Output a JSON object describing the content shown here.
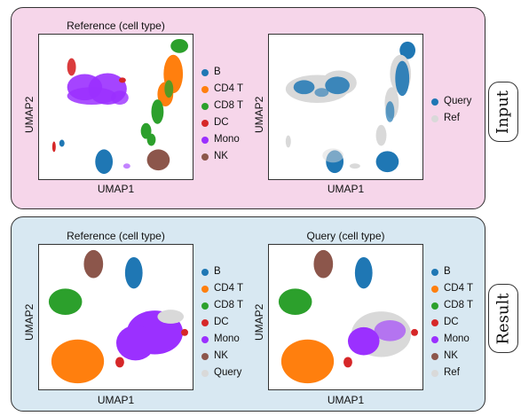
{
  "panels": {
    "input": {
      "tag": "Input",
      "plots": [
        {
          "title": "Reference (cell type)",
          "xlabel": "UMAP1",
          "ylabel": "UMAP2",
          "legend": [
            "B",
            "CD4 T",
            "CD8 T",
            "DC",
            "Mono",
            "NK"
          ]
        },
        {
          "title": "",
          "xlabel": "UMAP1",
          "ylabel": "UMAP2",
          "legend": [
            "Query",
            "Ref"
          ]
        }
      ]
    },
    "result": {
      "tag": "Result",
      "plots": [
        {
          "title": "Reference (cell type)",
          "xlabel": "UMAP1",
          "ylabel": "UMAP2",
          "legend": [
            "B",
            "CD4 T",
            "CD8 T",
            "DC",
            "Mono",
            "NK",
            "Query"
          ]
        },
        {
          "title": "Query (cell type)",
          "xlabel": "UMAP1",
          "ylabel": "UMAP2",
          "legend": [
            "B",
            "CD4 T",
            "CD8 T",
            "DC",
            "Mono",
            "NK",
            "Ref"
          ]
        }
      ]
    }
  },
  "colors": {
    "B": "#1f77b4",
    "CD4 T": "#ff7f0e",
    "CD8 T": "#2ca02c",
    "DC": "#d62728",
    "Mono": "#9b30ff",
    "NK": "#8c564b",
    "Query": "#1f77b4",
    "Ref": "#d9d9d9",
    "Query_gray": "#d9d9d9",
    "input_bg": "#f6d6ea",
    "result_bg": "#d8e8f2"
  }
}
